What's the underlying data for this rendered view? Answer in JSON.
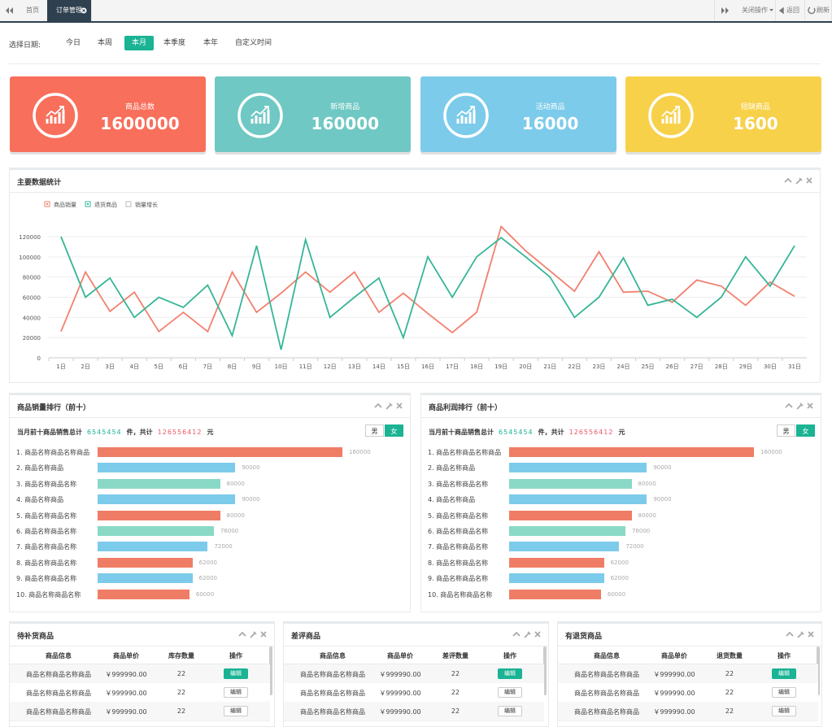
{
  "tabs": {
    "home": "首页",
    "active": "订单管理",
    "actions": [
      "关闭操作",
      "返回",
      "刷新"
    ]
  },
  "date_filter": {
    "label": "选择日期:",
    "options": [
      "今日",
      "本周",
      "本月",
      "本季度",
      "本年",
      "自定义时间"
    ],
    "active": 2
  },
  "stats": [
    {
      "label": "商品总数",
      "value": 1600000,
      "color": "#f86f5b"
    },
    {
      "label": "新增商品",
      "value": 160000,
      "color": "#6fc8c3"
    },
    {
      "label": "活动商品",
      "value": 16000,
      "color": "#7ccbea"
    },
    {
      "label": "短缺商品",
      "value": 1600,
      "color": "#f8d14b"
    }
  ],
  "chart_data": [
    {
      "type": "line",
      "title": "主要数据统计",
      "categories": [
        "1日",
        "2日",
        "3日",
        "4日",
        "5日",
        "6日",
        "7日",
        "8日",
        "9日",
        "10日",
        "11日",
        "12日",
        "13日",
        "14日",
        "15日",
        "16日",
        "17日",
        "18日",
        "19日",
        "20日",
        "21日",
        "22日",
        "23日",
        "24日",
        "25日",
        "26日",
        "27日",
        "28日",
        "29日",
        "30日",
        "31日"
      ],
      "series": [
        {
          "name": "商品销量",
          "color": "#f3806f",
          "values": [
            26000,
            85000,
            46000,
            65000,
            26000,
            45000,
            26000,
            85000,
            45000,
            64000,
            85000,
            65000,
            85000,
            45000,
            64000,
            44000,
            25000,
            45000,
            130000,
            106000,
            86000,
            66000,
            105000,
            65000,
            66000,
            55000,
            77000,
            71000,
            52000,
            75000,
            61000
          ]
        },
        {
          "name": "退货商品",
          "color": "#36b597",
          "values": [
            120000,
            60000,
            79000,
            40000,
            60000,
            50000,
            72000,
            22000,
            111000,
            8000,
            117000,
            40000,
            60000,
            79000,
            20000,
            100000,
            60000,
            100000,
            119000,
            100000,
            80000,
            40000,
            60000,
            99000,
            52000,
            58000,
            40000,
            60000,
            100000,
            71000,
            111000
          ]
        },
        {
          "name": "销量增长",
          "color": "#bbbbbb",
          "values": [
            null,
            null,
            null,
            null,
            null,
            null,
            null,
            null,
            null,
            null,
            null,
            null,
            null,
            null,
            null,
            null,
            null,
            null,
            null,
            null,
            null,
            null,
            null,
            null,
            null,
            null,
            null,
            null,
            null,
            null,
            null
          ]
        }
      ],
      "ylim": [
        0,
        130000
      ],
      "yticks": [
        0,
        20000,
        40000,
        60000,
        80000,
        100000,
        120000
      ],
      "grid": true
    },
    {
      "type": "hbar",
      "title": "商品销量排行（前十）",
      "summary": [
        "当月前十商品销售总计",
        "6545454",
        "件，共计",
        "126556412",
        "元"
      ],
      "toggle": [
        "男",
        "女"
      ],
      "toggle_active": 1,
      "categories": [
        "1. 商品名称商品名称商品",
        "2. 商品名称商品",
        "3. 商品名称商品名称",
        "4. 商品名称商品",
        "5. 商品名称商品名称",
        "6. 商品名称商品名称",
        "7. 商品名称商品名称",
        "8. 商品名称商品名称",
        "9. 商品名称商品名称",
        "10. 商品名称商品名称"
      ],
      "values": [
        160000,
        90000,
        80000,
        90000,
        80000,
        76000,
        72000,
        62000,
        62000,
        60000
      ],
      "colors": [
        "#ef7d65",
        "#7ccbea",
        "#8ad9c6",
        "#7ccbea",
        "#ef7d65",
        "#8ad9c6",
        "#7ccbea",
        "#ef7d65",
        "#7ccbea",
        "#ef7d65"
      ],
      "xlim": [
        0,
        160000
      ]
    },
    {
      "type": "hbar",
      "title": "商品利润排行（前十）",
      "summary": [
        "当月前十商品销售总计",
        "6545454",
        "件，共计",
        "126556412",
        "元"
      ],
      "toggle": [
        "男",
        "女"
      ],
      "toggle_active": 1,
      "categories": [
        "1. 商品名称商品名称商品",
        "2. 商品名称商品",
        "3. 商品名称商品名称",
        "4. 商品名称商品",
        "5. 商品名称商品名称",
        "6. 商品名称商品名称",
        "7. 商品名称商品名称",
        "8. 商品名称商品名称",
        "9. 商品名称商品名称",
        "10. 商品名称商品名称"
      ],
      "values": [
        160000,
        90000,
        80000,
        90000,
        80000,
        76000,
        72000,
        62000,
        62000,
        60000
      ],
      "colors": [
        "#ef7d65",
        "#7ccbea",
        "#8ad9c6",
        "#7ccbea",
        "#ef7d65",
        "#8ad9c6",
        "#7ccbea",
        "#ef7d65",
        "#7ccbea",
        "#ef7d65"
      ],
      "xlim": [
        0,
        160000
      ]
    }
  ],
  "tables": [
    {
      "title": "待补货商品",
      "columns": [
        "商品信息",
        "商品单价",
        "库存数量",
        "操作"
      ],
      "rows": [
        [
          "商品名称商品名称商品",
          "￥999990.00",
          22,
          "编辑"
        ],
        [
          "商品名称商品名称商品",
          "￥999990.00",
          22,
          "编辑"
        ],
        [
          "商品名称商品名称商品",
          "￥999990.00",
          22,
          "编辑"
        ]
      ]
    },
    {
      "title": "差评商品",
      "columns": [
        "商品信息",
        "商品单价",
        "差评数量",
        "操作"
      ],
      "rows": [
        [
          "商品名称商品名称商品",
          "￥999990.00",
          22,
          "编辑"
        ],
        [
          "商品名称商品名称商品",
          "￥999990.00",
          22,
          "编辑"
        ],
        [
          "商品名称商品名称商品",
          "￥999990.00",
          22,
          "编辑"
        ]
      ]
    },
    {
      "title": "有退货商品",
      "columns": [
        "商品信息",
        "商品单价",
        "退货数量",
        "操作"
      ],
      "rows": [
        [
          "商品名称商品名称商品",
          "￥999990.00",
          22,
          "编辑"
        ],
        [
          "商品名称商品名称商品",
          "￥999990.00",
          22,
          "编辑"
        ],
        [
          "商品名称商品名称商品",
          "￥999990.00",
          22,
          "编辑"
        ]
      ]
    }
  ]
}
